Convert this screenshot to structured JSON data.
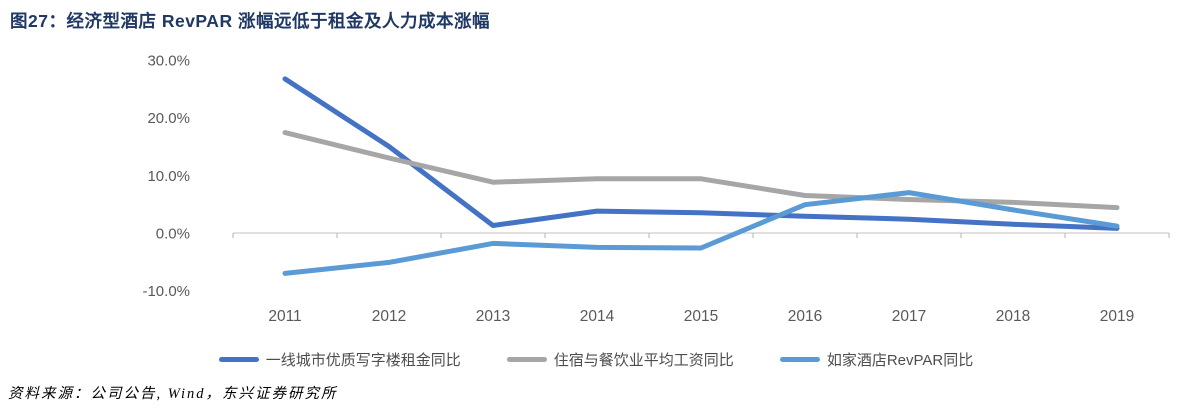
{
  "title": "图27：经济型酒店 RevPAR 涨幅远低于租金及人力成本涨幅",
  "source_note": "资料来源：公司公告, Wind，东兴证券研究所",
  "colors": {
    "title_text": "#1F3864",
    "axis_text": "#595959",
    "axis_line": "#D0CECE",
    "tick_mark": "#BFBFBF"
  },
  "chart_data": {
    "type": "line",
    "categories": [
      "2011",
      "2012",
      "2013",
      "2014",
      "2015",
      "2016",
      "2017",
      "2018",
      "2019"
    ],
    "series": [
      {
        "name": "一线城市优质写字楼租金同比",
        "color": "#4472C4",
        "values": [
          26.7,
          15.0,
          1.3,
          3.8,
          3.5,
          2.9,
          2.4,
          1.5,
          0.8
        ]
      },
      {
        "name": "住宿与餐饮业平均工资同比",
        "color": "#A6A6A6",
        "values": [
          17.4,
          13.0,
          8.8,
          9.4,
          9.4,
          6.5,
          5.8,
          5.3,
          4.4
        ]
      },
      {
        "name": "如家酒店RevPAR同比",
        "color": "#5B9BD5",
        "values": [
          -7.0,
          -5.1,
          -1.8,
          -2.5,
          -2.6,
          4.9,
          7.0,
          4.0,
          1.2
        ]
      }
    ],
    "y_ticks": [
      30,
      20,
      10,
      0,
      -10
    ],
    "y_tick_labels": [
      "30.0%",
      "20.0%",
      "10.0%",
      "0.0%",
      "-10.0%"
    ],
    "ylim": [
      -13,
      32
    ],
    "xlabel": "",
    "ylabel": "",
    "grid": false,
    "legend_position": "bottom"
  }
}
